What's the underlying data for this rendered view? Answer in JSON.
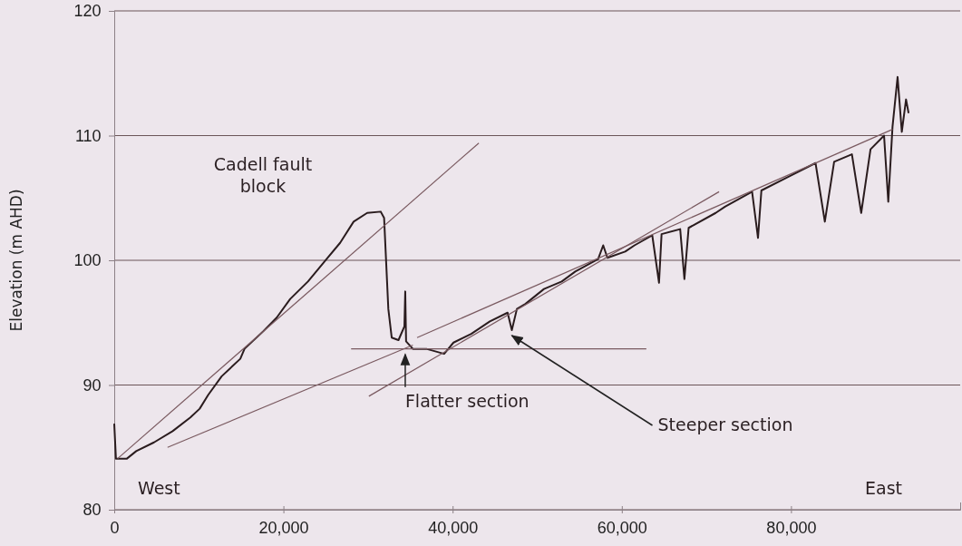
{
  "chart_data": {
    "type": "line",
    "ylabel": "Elevation (m AHD)",
    "xlim": [
      0,
      100000
    ],
    "ylim": [
      80,
      120
    ],
    "xticks": [
      {
        "value": 0,
        "label": "0"
      },
      {
        "value": 20000,
        "label": "20,000"
      },
      {
        "value": 40000,
        "label": "40,000"
      },
      {
        "value": 60000,
        "label": "60,000"
      },
      {
        "value": 80000,
        "label": "80,000"
      }
    ],
    "yticks": [
      80,
      90,
      100,
      110,
      120
    ],
    "grid": "y",
    "marker": "none",
    "line_style": "solid",
    "annotations": [
      "Cadell fault block",
      "West",
      "East",
      {
        "text": "Flatter section",
        "x": 34400,
        "y": 92.9
      },
      {
        "text": "Steeper section",
        "x": 47000,
        "y": 94.4
      }
    ],
    "series": [
      {
        "color": "#2a1c1e",
        "x": [
          0,
          200,
          1500,
          2600,
          4700,
          6900,
          9000,
          10100,
          11100,
          12700,
          14900,
          15400,
          17600,
          19200,
          20800,
          22900,
          25100,
          26700,
          28300,
          29900,
          31500,
          31900,
          32400,
          32800,
          33600,
          34300,
          34400,
          34500,
          35300,
          36900,
          39000,
          40100,
          42200,
          44400,
          46500,
          47000,
          47600,
          48600,
          50800,
          52900,
          54500,
          57200,
          57800,
          58300,
          60400,
          61500,
          63600,
          64400,
          64700,
          66900,
          67400,
          67900,
          71100,
          72200,
          75400,
          76100,
          76500,
          79700,
          82900,
          84000,
          85100,
          87200,
          88300,
          89400,
          91000,
          91500,
          92000,
          92600,
          93100,
          93600,
          93900
        ],
        "values": [
          86.9,
          84.1,
          84.1,
          84.7,
          85.4,
          86.3,
          87.4,
          88.1,
          89.2,
          90.7,
          92.1,
          92.9,
          94.3,
          95.4,
          96.9,
          98.3,
          100.1,
          101.4,
          103.1,
          103.8,
          103.9,
          103.4,
          96.1,
          93.8,
          93.6,
          94.7,
          97.5,
          93.5,
          92.9,
          92.9,
          92.5,
          93.4,
          94.1,
          95.1,
          95.8,
          94.4,
          96.1,
          96.5,
          97.7,
          98.3,
          99.1,
          100.1,
          101.2,
          100.2,
          100.7,
          101.2,
          102.0,
          98.2,
          102.1,
          102.5,
          98.5,
          102.6,
          103.8,
          104.3,
          105.5,
          101.8,
          105.6,
          106.7,
          107.8,
          103.1,
          107.9,
          108.5,
          103.8,
          108.9,
          110.0,
          104.7,
          110.7,
          114.7,
          110.3,
          112.9,
          111.8
        ]
      },
      {
        "color": "#7a5a60",
        "x": [
          400,
          43100
        ],
        "values": [
          84.1,
          109.4
        ]
      },
      {
        "color": "#7a5a60",
        "x": [
          6300,
          35300
        ],
        "values": [
          85.0,
          93.2
        ]
      },
      {
        "color": "#7a5a60",
        "x": [
          28000,
          62900
        ],
        "values": [
          92.9,
          92.9
        ]
      },
      {
        "color": "#7a5a60",
        "x": [
          30100,
          71500
        ],
        "values": [
          89.1,
          105.5
        ]
      },
      {
        "color": "#7a5a60",
        "x": [
          35800,
          92000
        ],
        "values": [
          93.8,
          110.5
        ]
      }
    ]
  }
}
